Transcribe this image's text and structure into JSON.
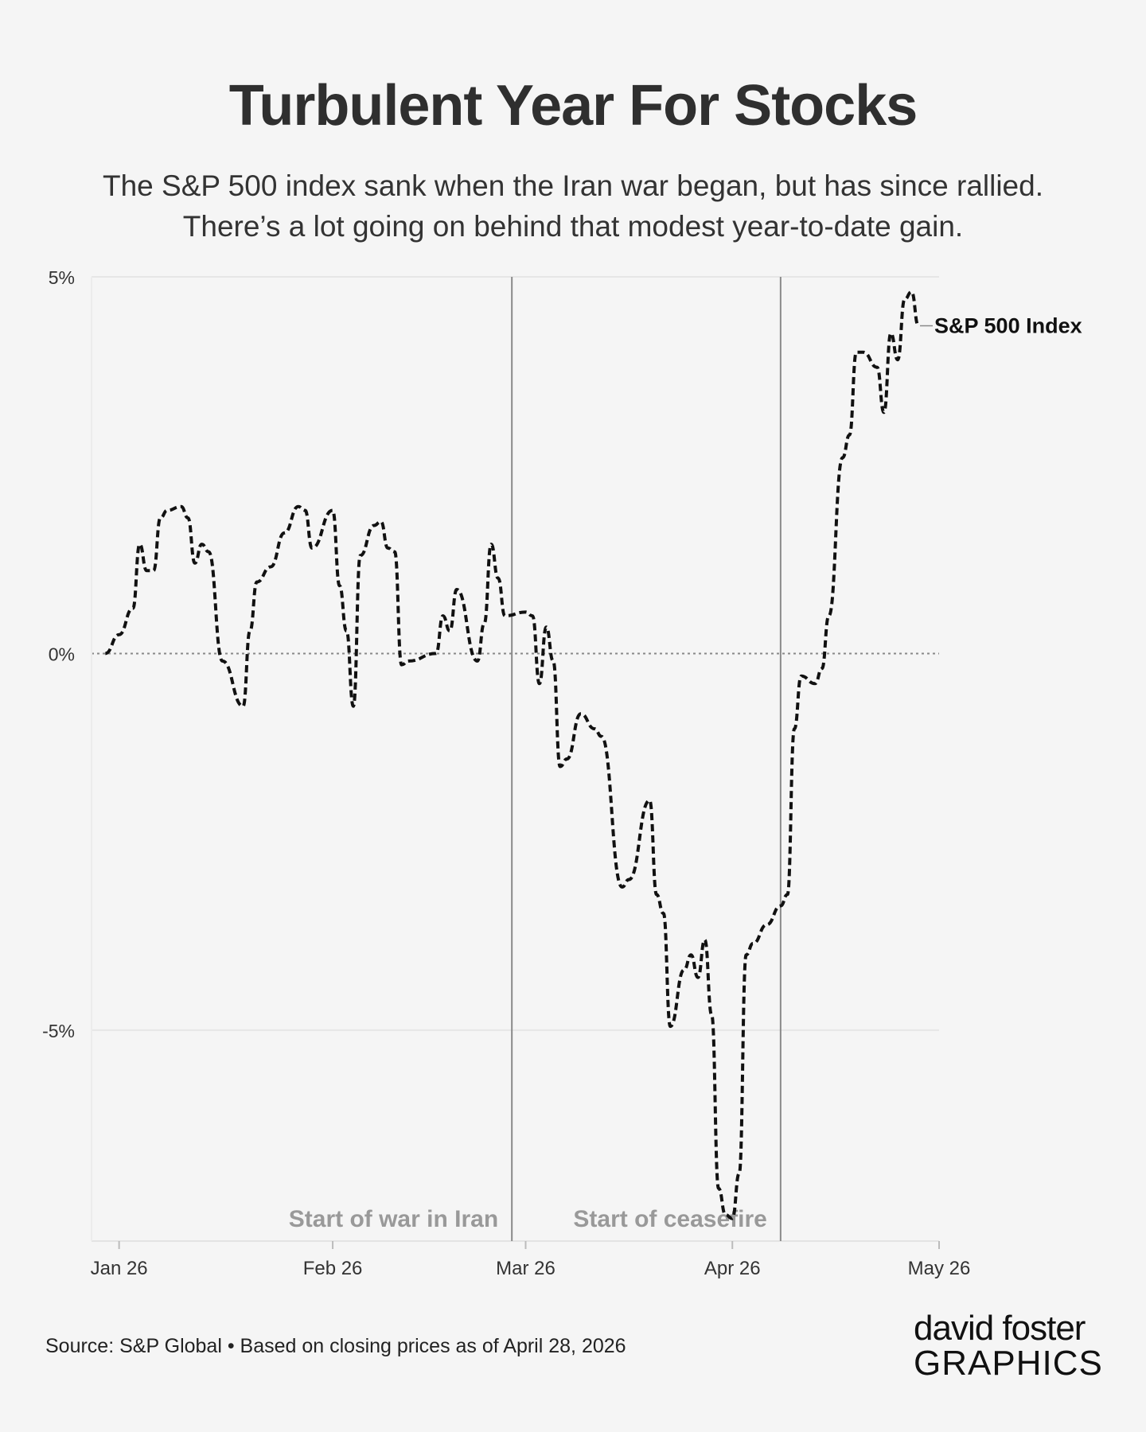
{
  "header": {
    "title": "Turbulent Year For Stocks",
    "subtitle_line1": "The S&P 500 index sank when the Iran war began, but has since rallied.",
    "subtitle_line2": "There’s a lot going on behind that modest year-to-date gain."
  },
  "footer": {
    "source": "Source: S&P Global • Based on closing prices as of April 28, 2026",
    "logo_line1": "david foster",
    "logo_line2": "GRAPHICS"
  },
  "colors": {
    "background": "#f5f5f5",
    "line": "#111111",
    "annotation": "#999999",
    "logo_accent": "#2aa7e0"
  },
  "chart_data": {
    "type": "line",
    "title": "Turbulent Year For Stocks",
    "ylim": [
      -7.8,
      5
    ],
    "yticks": [
      5,
      0,
      -5
    ],
    "ytick_labels": [
      "5%",
      "0%",
      "-5%"
    ],
    "xticks": [
      "2026-01-02",
      "2026-02-02",
      "2026-03-02",
      "2026-04-01",
      "2026-05-01"
    ],
    "xtick_labels": [
      "Jan 26",
      "Feb 26",
      "Mar 26",
      "Apr 26",
      "May 26"
    ],
    "x_range": [
      "2025-12-29",
      "2026-05-01"
    ],
    "grid": "horizontal",
    "line_style": "dashed",
    "zero_line": "dotted",
    "series": [
      {
        "name": "S&P 500 Index",
        "points": [
          [
            "2025-12-31",
            0.0
          ],
          [
            "2026-01-02",
            0.25
          ],
          [
            "2026-01-04",
            0.6
          ],
          [
            "2026-01-05",
            1.45
          ],
          [
            "2026-01-06",
            1.1
          ],
          [
            "2026-01-07",
            1.1
          ],
          [
            "2026-01-08",
            1.8
          ],
          [
            "2026-01-09",
            1.9
          ],
          [
            "2026-01-11",
            1.95
          ],
          [
            "2026-01-12",
            1.8
          ],
          [
            "2026-01-13",
            1.2
          ],
          [
            "2026-01-14",
            1.45
          ],
          [
            "2026-01-15",
            1.35
          ],
          [
            "2026-01-17",
            -0.1
          ],
          [
            "2026-01-20",
            -0.7
          ],
          [
            "2026-01-21",
            0.3
          ],
          [
            "2026-01-22",
            0.95
          ],
          [
            "2026-01-24",
            1.15
          ],
          [
            "2026-01-26",
            1.6
          ],
          [
            "2026-01-28",
            1.95
          ],
          [
            "2026-01-29",
            1.9
          ],
          [
            "2026-01-30",
            1.4
          ],
          [
            "2026-02-02",
            1.9
          ],
          [
            "2026-02-03",
            0.9
          ],
          [
            "2026-02-04",
            0.3
          ],
          [
            "2026-02-05",
            -0.7
          ],
          [
            "2026-02-06",
            1.3
          ],
          [
            "2026-02-08",
            1.7
          ],
          [
            "2026-02-09",
            1.75
          ],
          [
            "2026-02-10",
            1.4
          ],
          [
            "2026-02-11",
            1.35
          ],
          [
            "2026-02-12",
            -0.15
          ],
          [
            "2026-02-13",
            -0.1
          ],
          [
            "2026-02-17",
            0.0
          ],
          [
            "2026-02-18",
            0.5
          ],
          [
            "2026-02-19",
            0.3
          ],
          [
            "2026-02-20",
            0.85
          ],
          [
            "2026-02-23",
            -0.1
          ],
          [
            "2026-02-24",
            0.4
          ],
          [
            "2026-02-25",
            1.45
          ],
          [
            "2026-02-26",
            1.0
          ],
          [
            "2026-02-27",
            0.5
          ],
          [
            "2026-03-02",
            0.55
          ],
          [
            "2026-03-03",
            0.5
          ],
          [
            "2026-03-04",
            -0.4
          ],
          [
            "2026-03-05",
            0.35
          ],
          [
            "2026-03-06",
            -0.1
          ],
          [
            "2026-03-07",
            -1.5
          ],
          [
            "2026-03-08",
            -1.4
          ],
          [
            "2026-03-10",
            -0.8
          ],
          [
            "2026-03-12",
            -1.0
          ],
          [
            "2026-03-13",
            -1.1
          ],
          [
            "2026-03-16",
            -3.1
          ],
          [
            "2026-03-17",
            -3.0
          ],
          [
            "2026-03-20",
            -1.95
          ],
          [
            "2026-03-21",
            -3.2
          ],
          [
            "2026-03-22",
            -3.45
          ],
          [
            "2026-03-23",
            -4.95
          ],
          [
            "2026-03-25",
            -4.2
          ],
          [
            "2026-03-26",
            -4.0
          ],
          [
            "2026-03-27",
            -4.3
          ],
          [
            "2026-03-28",
            -3.8
          ],
          [
            "2026-03-29",
            -4.8
          ],
          [
            "2026-03-30",
            -7.1
          ],
          [
            "2026-03-31",
            -7.45
          ],
          [
            "2026-04-01",
            -7.5
          ],
          [
            "2026-04-02",
            -6.9
          ],
          [
            "2026-04-03",
            -4.0
          ],
          [
            "2026-04-04",
            -3.85
          ],
          [
            "2026-04-06",
            -3.6
          ],
          [
            "2026-04-08",
            -3.35
          ],
          [
            "2026-04-09",
            -3.2
          ],
          [
            "2026-04-10",
            -1.0
          ],
          [
            "2026-04-11",
            -0.3
          ],
          [
            "2026-04-13",
            -0.4
          ],
          [
            "2026-04-14",
            -0.2
          ],
          [
            "2026-04-15",
            0.5
          ],
          [
            "2026-04-17",
            2.6
          ],
          [
            "2026-04-18",
            2.9
          ],
          [
            "2026-04-19",
            4.0
          ],
          [
            "2026-04-20",
            4.0
          ],
          [
            "2026-04-22",
            3.8
          ],
          [
            "2026-04-23",
            3.2
          ],
          [
            "2026-04-24",
            4.25
          ],
          [
            "2026-04-25",
            3.9
          ],
          [
            "2026-04-26",
            4.7
          ],
          [
            "2026-04-27",
            4.8
          ],
          [
            "2026-04-28",
            4.35
          ]
        ]
      }
    ],
    "annotations": [
      {
        "date": "2026-02-28",
        "label": "Start of war in Iran"
      },
      {
        "date": "2026-04-08",
        "label": "Start of ceasefire"
      }
    ]
  }
}
